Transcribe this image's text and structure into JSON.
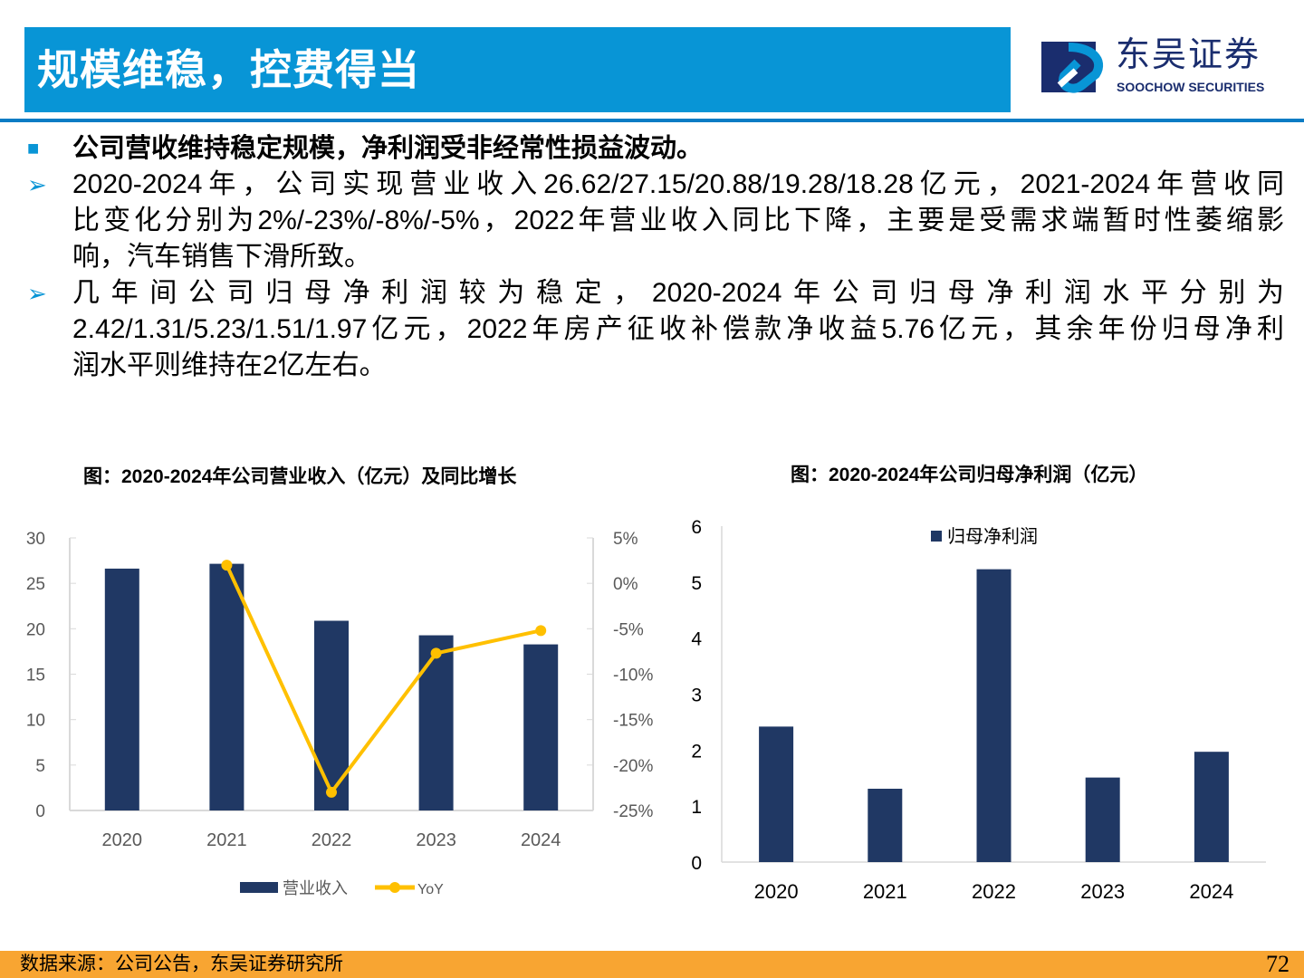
{
  "title": "规模维稳，控费得当",
  "logo": {
    "cn": "东吴证券",
    "en": "SOOCHOW SECURITIES"
  },
  "heading": "公司营收维持稳定规模，净利润受非经常性损益波动。",
  "para1": [
    "2020-2024年，公司实现营业收入26.62/27.15/20.88/19.28/18.28亿元，2021-2024年营收同",
    "比变化分别为2%/-23%/-8%/-5%，2022年营业收入同比下降，主要是受需求端暂时性萎缩影",
    "响，汽车销售下滑所致。"
  ],
  "para2": [
    "几年间公司归母净利润较为稳定，2020-2024年公司归母净利润水平分别为",
    "2.42/1.31/5.23/1.51/1.97亿元，2022年房产征收补偿款净收益5.76亿元，其余年份归母净利",
    "润水平则维持在2亿左右。"
  ],
  "footer": {
    "source": "数据来源：公司公告，东吴证券研究所",
    "page": "72"
  },
  "colors": {
    "accent": "#0895d6",
    "bar": "#203864",
    "line": "#ffc000",
    "footer": "#f8a532"
  },
  "chart_data": [
    {
      "type": "bar+line",
      "title": "图：2020-2024年公司营业收入（亿元）及同比增长",
      "categories": [
        "2020",
        "2021",
        "2022",
        "2023",
        "2024"
      ],
      "series": [
        {
          "name": "营业收入",
          "type": "bar",
          "axis": "left",
          "values": [
            26.62,
            27.15,
            20.88,
            19.28,
            18.28
          ]
        },
        {
          "name": "YoY",
          "type": "line",
          "axis": "right",
          "values": [
            null,
            2,
            -23,
            -7.7,
            -5.2
          ]
        }
      ],
      "ylim": [
        0,
        30
      ],
      "yticks": [
        "0",
        "5",
        "10",
        "15",
        "20",
        "25",
        "30"
      ],
      "y2lim": [
        -25,
        5
      ],
      "y2ticks": [
        "-25%",
        "-20%",
        "-15%",
        "-10%",
        "-5%",
        "0%",
        "5%"
      ],
      "legend": "bottom",
      "grid": false
    },
    {
      "type": "bar",
      "title": "图：2020-2024年公司归母净利润（亿元）",
      "categories": [
        "2020",
        "2021",
        "2022",
        "2023",
        "2024"
      ],
      "series": [
        {
          "name": "归母净利润",
          "values": [
            2.42,
            1.31,
            5.23,
            1.51,
            1.97
          ]
        }
      ],
      "ylim": [
        0,
        6
      ],
      "yticks": [
        "0",
        "1",
        "2",
        "3",
        "4",
        "5",
        "6"
      ],
      "legend": "top-right",
      "grid": false
    }
  ]
}
